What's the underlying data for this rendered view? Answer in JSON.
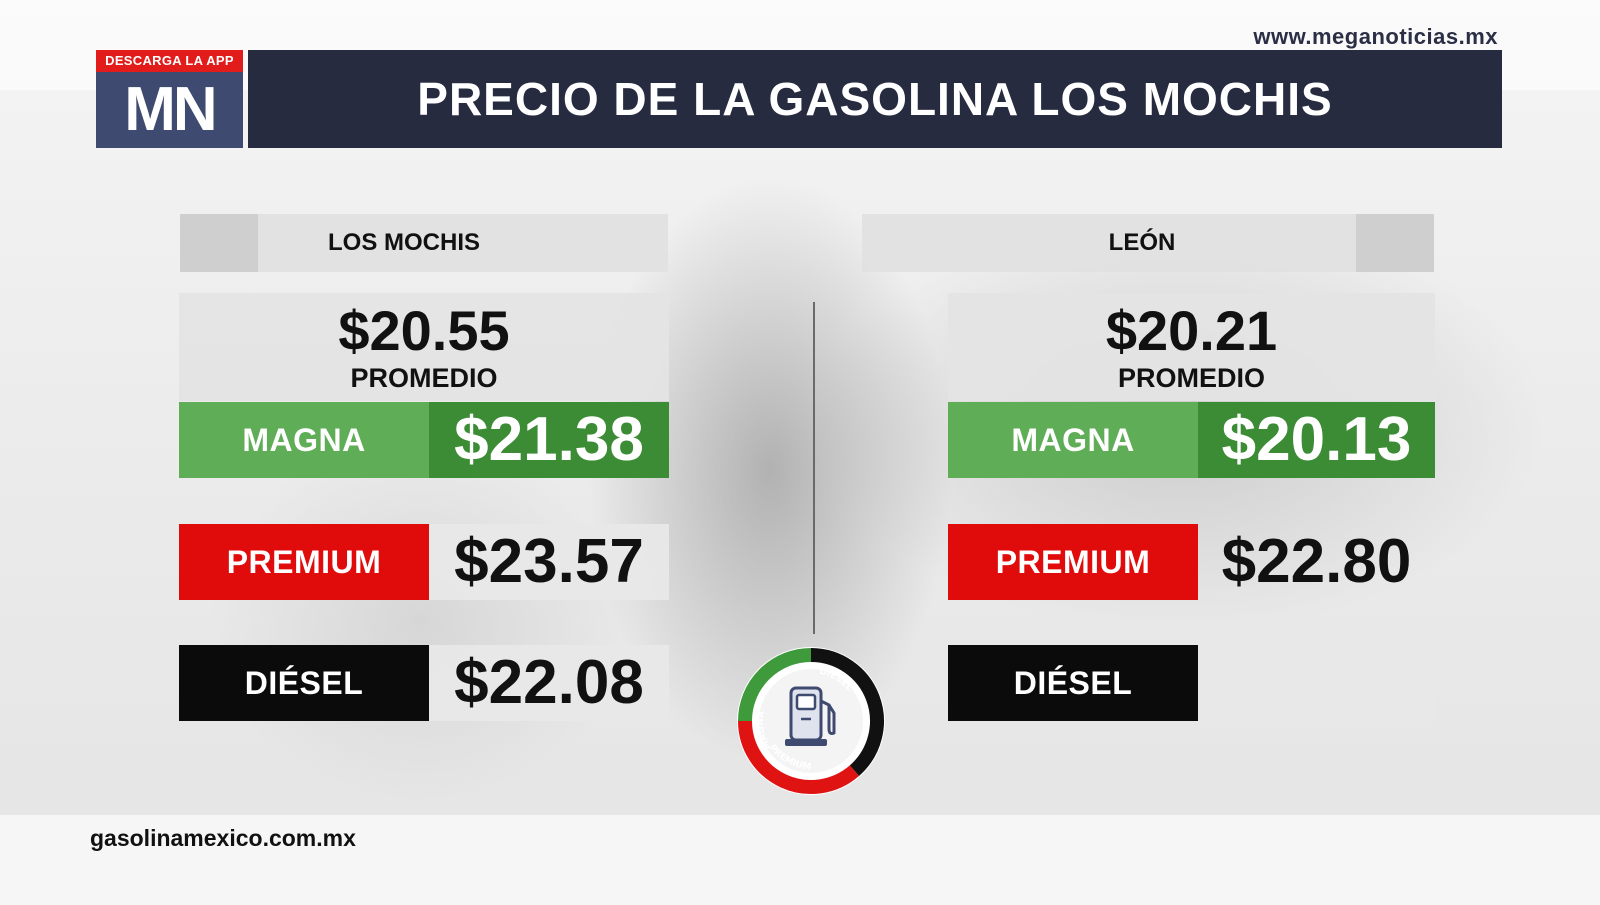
{
  "header": {
    "site_url": "www.meganoticias.mx",
    "app_badge": "DESCARGA LA APP",
    "logo_text": "MN",
    "title": "PRECIO DE LA GASOLINA LOS MOCHIS"
  },
  "left": {
    "city": "LOS MOCHIS",
    "average_price": "$20.55",
    "average_label": "PROMEDIO",
    "magna_label": "MAGNA",
    "magna_price": "$21.38",
    "premium_label": "PREMIUM",
    "premium_price": "$23.57",
    "diesel_label": "DIÉSEL",
    "diesel_price": "$22.08"
  },
  "right": {
    "city": "LEÓN",
    "average_price": "$20.21",
    "average_label": "PROMEDIO",
    "magna_label": "MAGNA",
    "magna_price": "$20.13",
    "premium_label": "PREMIUM",
    "premium_price": "$22.80",
    "diesel_label": "DIÉSEL",
    "diesel_price": ""
  },
  "pump_icon": {
    "name": "fuel-pump-icon",
    "ring_labels": {
      "magna": "MAGNA",
      "diesel": "DIESEL",
      "premium": "PREMIUM"
    },
    "colors": {
      "magna": "#3e9a3b",
      "diesel": "#111111",
      "premium": "#e01313",
      "icon": "#3f4a70"
    }
  },
  "footer": {
    "source_url": "gasolinamexico.com.mx"
  },
  "colors": {
    "title_bar": "#262b40",
    "logo_bg": "#3f4a70",
    "badge_red": "#e21b1b",
    "magna_light": "#5fad56",
    "magna_dark": "#3b8c35",
    "premium_red": "#e00c0c",
    "diesel_black": "#0b0b0b"
  }
}
